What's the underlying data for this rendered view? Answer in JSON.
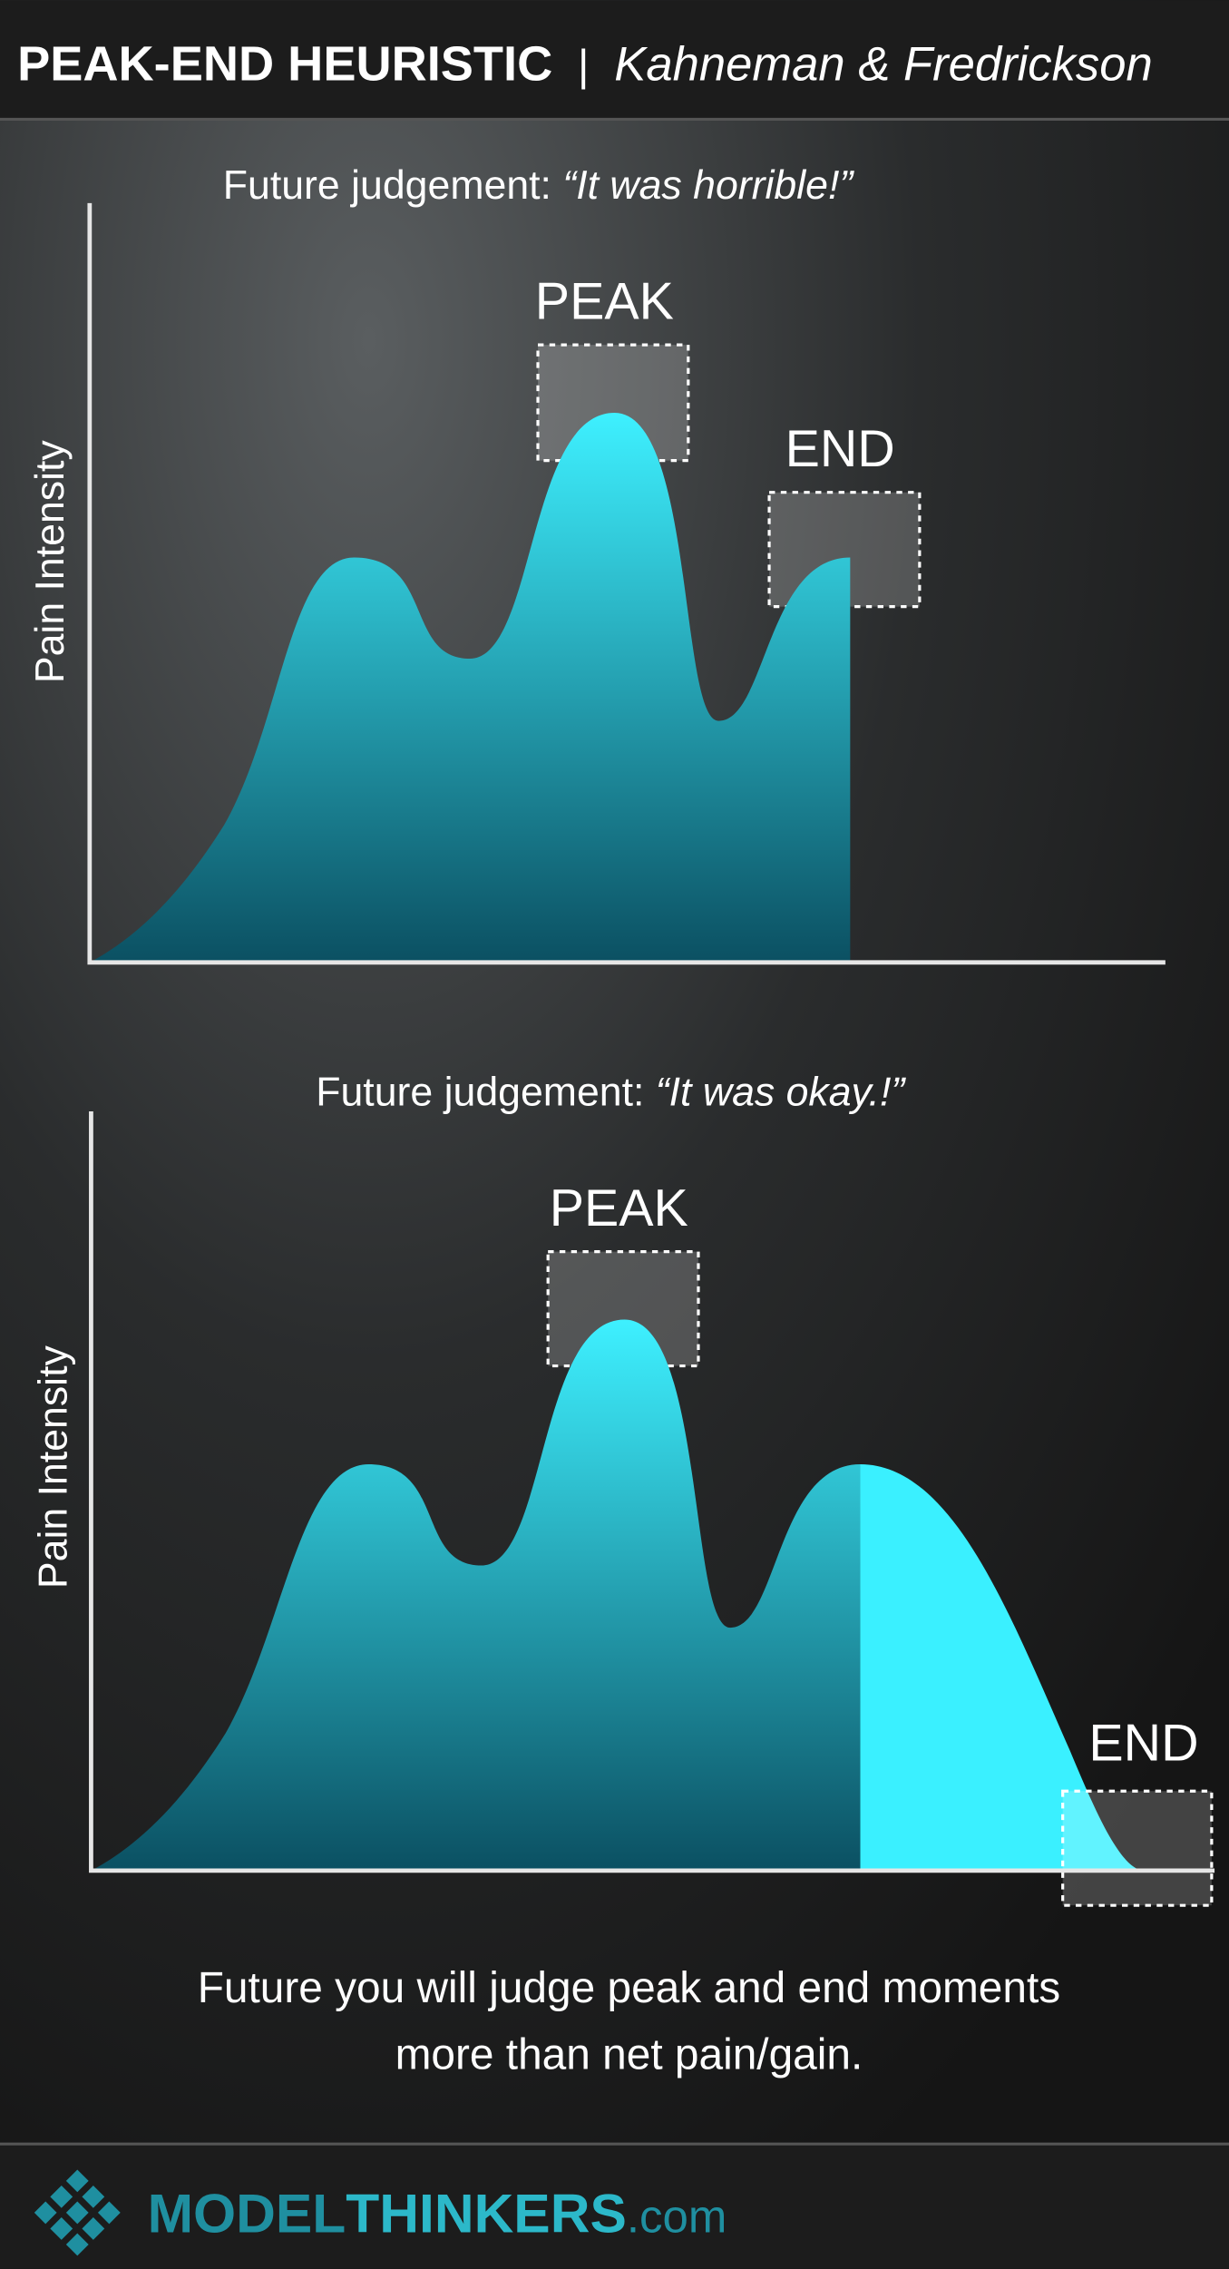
{
  "header": {
    "title": "PEAK-END HEURISTIC",
    "separator": "|",
    "subtitle": "Kahneman & Fredrickson"
  },
  "panels": [
    {
      "judgement_prefix": "Future judgement: ",
      "judgement_quote": "“It was horrible!”",
      "y_axis_label": "Pain Intensity",
      "peak_label": "PEAK",
      "end_label": "END"
    },
    {
      "judgement_prefix": "Future judgement: ",
      "judgement_quote": "“It was okay.!”",
      "y_axis_label": "Pain Intensity",
      "peak_label": "PEAK",
      "end_label": "END"
    }
  ],
  "footer_text": [
    "Future you will judge peak and end moments",
    "more than net pain/gain."
  ],
  "logo": {
    "brand_bold_1": "MODEL",
    "brand_bold_2": "THINKERS",
    "suffix": ".com"
  }
}
